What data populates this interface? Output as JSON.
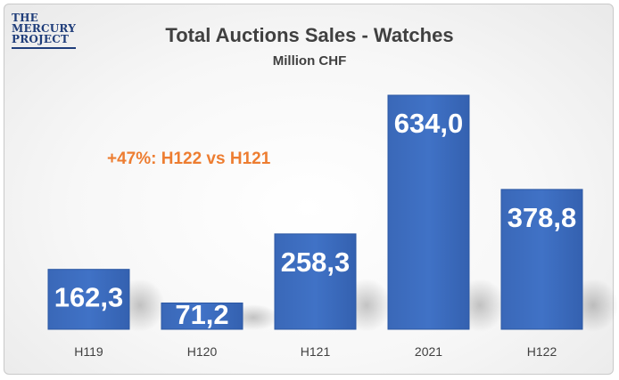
{
  "logo": {
    "line1": "THE",
    "line2": "MERCURY",
    "line3": "PROJECT"
  },
  "annotation": "+47%: H122 vs H121",
  "colors": {
    "bar": "#3c6ec0",
    "bar_dark": "#2c58a3",
    "annotation": "#ed7d31",
    "logo": "#1f3d7a"
  },
  "chart_data": {
    "type": "bar",
    "title": "Total Auctions Sales - Watches",
    "subtitle": "Million CHF",
    "categories": [
      "H119",
      "H120",
      "H121",
      "2021",
      "H122"
    ],
    "values": [
      162.3,
      71.2,
      258.3,
      634.0,
      378.8
    ],
    "value_labels": [
      "162,3",
      "71,2",
      "258,3",
      "634,0",
      "378,8"
    ],
    "xlabel": "",
    "ylabel": "",
    "ylim": [
      0,
      634.0
    ],
    "grid": false,
    "legend": "none"
  }
}
